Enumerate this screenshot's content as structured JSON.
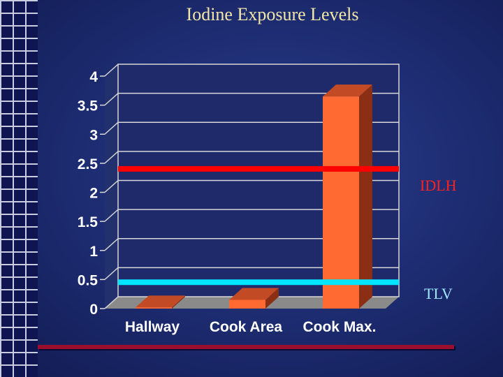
{
  "title": "Iodine Exposure Levels",
  "chart_data": {
    "type": "bar",
    "title": "Iodine Exposure Levels",
    "categories": [
      "Hallway",
      "Cook Area",
      "Cook Max."
    ],
    "values": [
      0.02,
      0.15,
      3.65
    ],
    "ylim": [
      0,
      4
    ],
    "yticks": [
      "0",
      "0.5",
      "1",
      "1.5",
      "2",
      "2.5",
      "3",
      "3.5",
      "4"
    ],
    "grid": true,
    "reference_lines": [
      {
        "name": "IDLH",
        "value": 2.2,
        "color": "#ff0000"
      },
      {
        "name": "TLV",
        "value": 0.25,
        "color": "#00e5ff"
      }
    ],
    "bar_color": "#ff6a33"
  }
}
